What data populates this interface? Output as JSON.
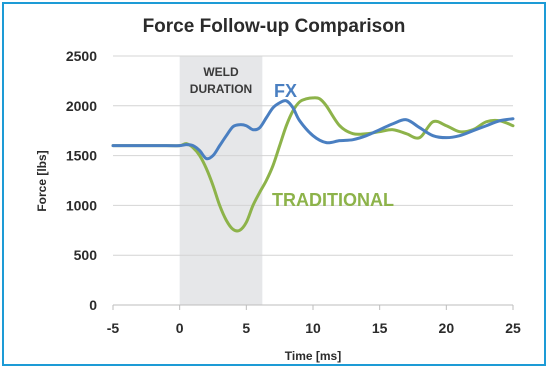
{
  "chart_data": {
    "type": "line",
    "title": "Force Follow-up Comparison",
    "xlabel": "Time [ms]",
    "ylabel": "Force [lbs]",
    "xlim": [
      -5,
      25
    ],
    "ylim": [
      0,
      2500
    ],
    "xticks": [
      "-5",
      "0",
      "5",
      "10",
      "15",
      "20",
      "25"
    ],
    "yticks": [
      "0",
      "500",
      "1000",
      "1500",
      "2000",
      "2500"
    ],
    "grid": "horizontal",
    "shaded_region": {
      "x": [
        0,
        6.2
      ],
      "label_lines": [
        "WELD",
        "DURATION"
      ],
      "color": "#e6e7e9"
    },
    "series": [
      {
        "name": "FX",
        "color": "#4a7fc1",
        "x": [
          -5,
          -1,
          0,
          0.5,
          1,
          1.5,
          2,
          2.5,
          3,
          3.5,
          4,
          4.5,
          5,
          5.5,
          6,
          6.5,
          7,
          7.5,
          8,
          8.5,
          9,
          10,
          11,
          12,
          13,
          14,
          15,
          16,
          17,
          18,
          19,
          20,
          21,
          22,
          23,
          24,
          25
        ],
        "y": [
          1600,
          1600,
          1600,
          1610,
          1600,
          1550,
          1470,
          1500,
          1600,
          1700,
          1790,
          1810,
          1800,
          1760,
          1780,
          1880,
          1980,
          2030,
          2050,
          1980,
          1850,
          1700,
          1630,
          1650,
          1660,
          1700,
          1760,
          1820,
          1860,
          1780,
          1700,
          1680,
          1700,
          1750,
          1800,
          1850,
          1870
        ]
      },
      {
        "name": "TRADITIONAL",
        "color": "#8db34a",
        "x": [
          -5,
          -1,
          0,
          0.5,
          1,
          1.5,
          2,
          2.5,
          3,
          3.5,
          4,
          4.5,
          5,
          5.5,
          6,
          6.5,
          7,
          7.5,
          8,
          8.5,
          9,
          9.5,
          10,
          10.5,
          11,
          12,
          13,
          14,
          15,
          16,
          17,
          18,
          19,
          20,
          21,
          22,
          23,
          24,
          25
        ],
        "y": [
          1600,
          1600,
          1600,
          1620,
          1580,
          1500,
          1370,
          1200,
          1000,
          850,
          760,
          750,
          830,
          1000,
          1130,
          1250,
          1400,
          1600,
          1800,
          1950,
          2040,
          2070,
          2080,
          2070,
          2000,
          1800,
          1720,
          1720,
          1740,
          1760,
          1720,
          1680,
          1840,
          1800,
          1740,
          1760,
          1840,
          1850,
          1800
        ]
      }
    ]
  }
}
